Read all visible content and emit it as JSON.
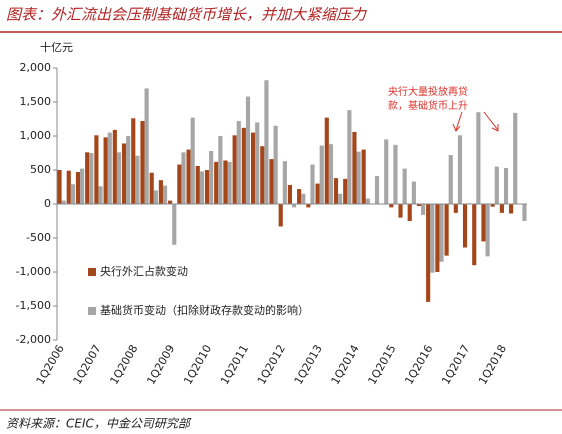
{
  "chart_data": {
    "type": "bar",
    "title": "图表：外汇流出会压制基础货币增长，并加大紧缩压力",
    "y_label": "十亿元",
    "annotation": [
      "央行大量投放再贷",
      "款，基础货币上升"
    ],
    "source": "资料来源：CEIC，中金公司研究部",
    "categories": [
      "1Q2006",
      null,
      null,
      null,
      "1Q2007",
      null,
      null,
      null,
      "1Q2008",
      null,
      null,
      null,
      "1Q2009",
      null,
      null,
      null,
      "1Q2010",
      null,
      null,
      null,
      "1Q2011",
      null,
      null,
      null,
      "1Q2012",
      null,
      null,
      null,
      "1Q2013",
      null,
      null,
      null,
      "1Q2014",
      null,
      null,
      null,
      "1Q2015",
      null,
      null,
      null,
      "1Q2016",
      null,
      null,
      null,
      "1Q2017",
      null,
      null,
      null,
      "1Q2018",
      null,
      null
    ],
    "series": [
      {
        "name": "央行外汇占款变动",
        "color": "#a5461a",
        "values": [
          500,
          490,
          470,
          760,
          1010,
          980,
          1090,
          890,
          1260,
          1220,
          460,
          350,
          50,
          580,
          800,
          560,
          500,
          620,
          640,
          1010,
          1120,
          1050,
          850,
          660,
          -330,
          280,
          220,
          -50,
          300,
          1270,
          380,
          370,
          1060,
          800,
          0,
          0,
          -50,
          -200,
          -250,
          -30,
          -1440,
          -1000,
          -760,
          -130,
          -640,
          -900,
          -550,
          -40,
          -130,
          -140,
          null
        ]
      },
      {
        "name": "基础货币变动（扣除财政存款变动的影响）",
        "color": "#a6a6a6",
        "values": [
          50,
          290,
          520,
          750,
          260,
          1050,
          760,
          1000,
          710,
          1700,
          200,
          270,
          -600,
          760,
          1270,
          480,
          780,
          1000,
          620,
          1220,
          1580,
          1200,
          1820,
          1150,
          630,
          -50,
          150,
          580,
          860,
          880,
          150,
          1380,
          770,
          80,
          410,
          950,
          870,
          520,
          330,
          -160,
          -1010,
          -850,
          720,
          1010,
          10,
          1350,
          -770,
          550,
          530,
          1340,
          -250
        ]
      }
    ],
    "ylim": [
      -2000,
      2000
    ],
    "yticks": [
      {
        "value": 2000,
        "label": "2,000"
      },
      {
        "value": 1500,
        "label": "1,500"
      },
      {
        "value": 1000,
        "label": "1,000"
      },
      500,
      0,
      -500,
      {
        "value": -1000,
        "label": "-1,000"
      },
      {
        "value": -1500,
        "label": "-1,500"
      },
      {
        "value": -2000,
        "label": "-2,000"
      }
    ]
  }
}
